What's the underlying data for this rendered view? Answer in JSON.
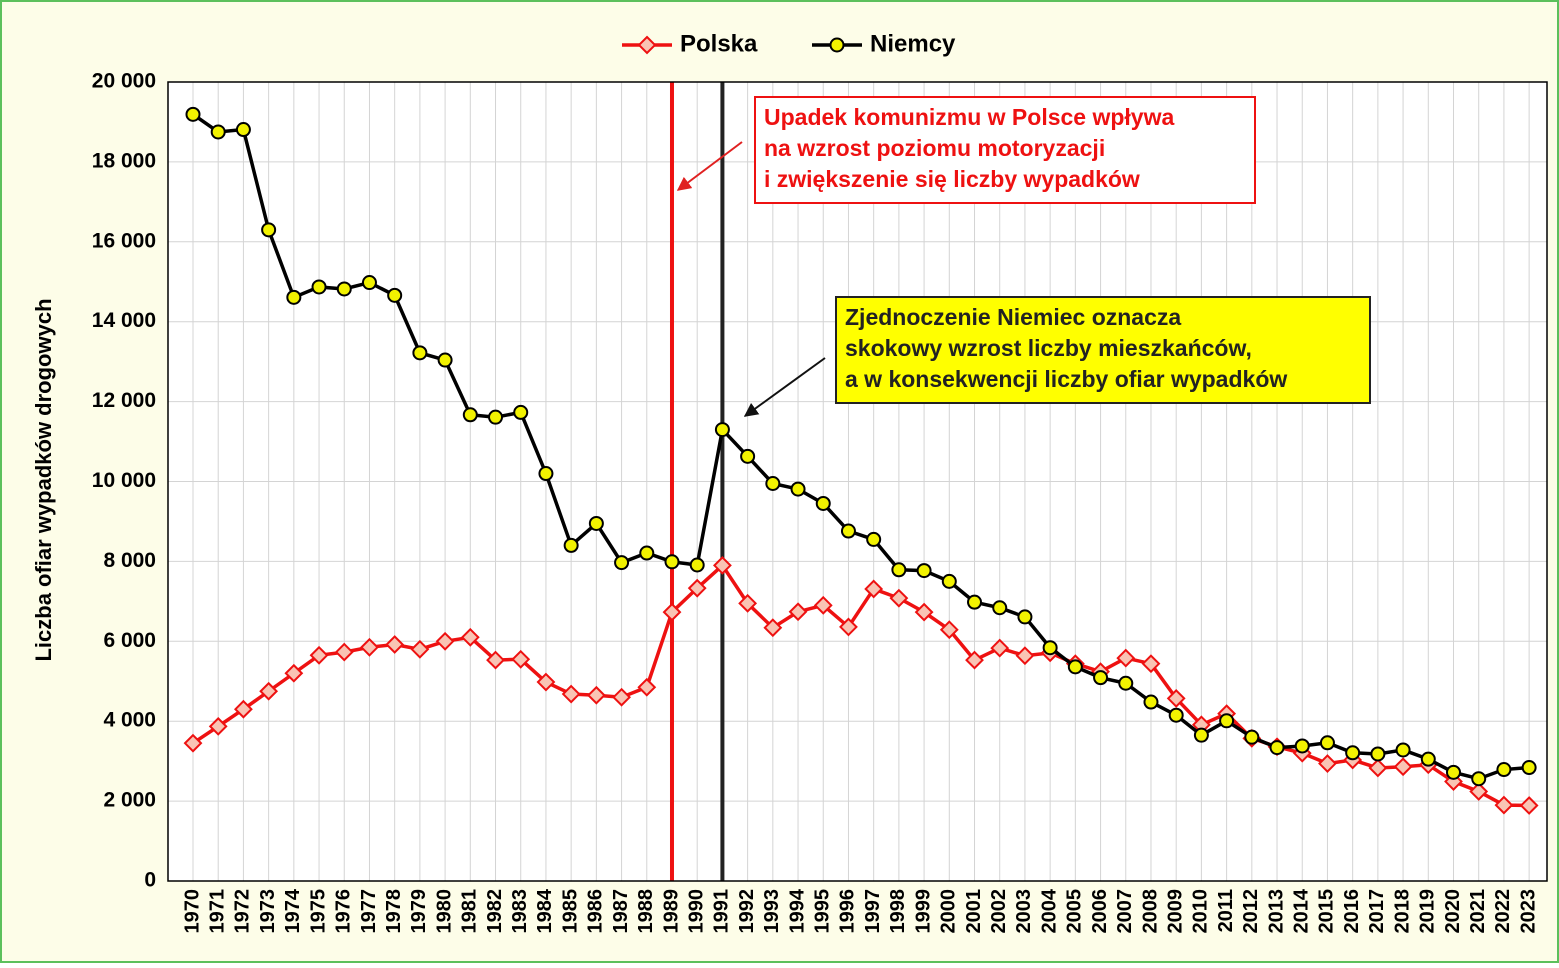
{
  "chart_data": {
    "type": "line",
    "y_label": "Liczba ofiar wypadków drogowych",
    "categories": [
      "1970",
      "1971",
      "1972",
      "1973",
      "1974",
      "1975",
      "1976",
      "1977",
      "1978",
      "1979",
      "1980",
      "1981",
      "1982",
      "1983",
      "1984",
      "1985",
      "1986",
      "1987",
      "1988",
      "1989",
      "1990",
      "1991",
      "1992",
      "1993",
      "1994",
      "1995",
      "1996",
      "1997",
      "1998",
      "1999",
      "2000",
      "2001",
      "2002",
      "2003",
      "2004",
      "2005",
      "2006",
      "2007",
      "2008",
      "2009",
      "2010",
      "2011",
      "2012",
      "2013",
      "2014",
      "2015",
      "2016",
      "2017",
      "2018",
      "2019",
      "2020",
      "2021",
      "2022",
      "2023"
    ],
    "series": [
      {
        "name": "Polska",
        "color": "#ee1111",
        "marker": "diamond",
        "marker_fill": "#f9c4b4",
        "values": [
          3450,
          3870,
          4300,
          4750,
          5200,
          5650,
          5730,
          5850,
          5920,
          5800,
          6000,
          6100,
          5530,
          5550,
          4980,
          4680,
          4650,
          4600,
          4850,
          6730,
          7330,
          7900,
          6950,
          6340,
          6740,
          6900,
          6360,
          7310,
          7080,
          6730,
          6290,
          5530,
          5830,
          5640,
          5710,
          5440,
          5240,
          5580,
          5440,
          4570,
          3910,
          4190,
          3570,
          3360,
          3200,
          2940,
          3030,
          2830,
          2860,
          2910,
          2490,
          2240,
          1900,
          1890
        ]
      },
      {
        "name": "Niemcy",
        "color": "#000000",
        "marker": "circle",
        "marker_fill": "#f2f200",
        "values": [
          19190,
          18750,
          18810,
          16300,
          14610,
          14870,
          14820,
          14980,
          14660,
          13220,
          13040,
          11670,
          11610,
          11730,
          10200,
          8400,
          8950,
          7970,
          8210,
          7990,
          7910,
          11300,
          10630,
          9950,
          9810,
          9450,
          8760,
          8550,
          7790,
          7770,
          7500,
          6980,
          6840,
          6610,
          5840,
          5360,
          5090,
          4950,
          4480,
          4150,
          3650,
          4010,
          3600,
          3340,
          3380,
          3460,
          3210,
          3180,
          3280,
          3050,
          2720,
          2560,
          2790,
          2840
        ]
      }
    ],
    "ylim": [
      0,
      20000
    ],
    "yticks": [
      0,
      {
        "value": 2000,
        "label": "2 000"
      },
      {
        "value": 4000,
        "label": "4 000"
      },
      {
        "value": 6000,
        "label": "6 000"
      },
      {
        "value": 8000,
        "label": "8 000"
      },
      {
        "value": 10000,
        "label": "10 000"
      },
      {
        "value": 12000,
        "label": "12 000"
      },
      {
        "value": 14000,
        "label": "14 000"
      },
      {
        "value": 16000,
        "label": "16 000"
      },
      {
        "value": 18000,
        "label": "18 000"
      },
      {
        "value": 20000,
        "label": "20 000"
      }
    ],
    "grid": true,
    "legend": "top",
    "annotations": [
      {
        "x": "1989",
        "color": "#ee1111",
        "box_fill": "#ffffff",
        "lines": [
          "Upadek komunizmu w Polsce wpływa",
          "na wzrost poziomu motoryzacji",
          "i zwiększenie się liczby wypadków"
        ]
      },
      {
        "x": "1991",
        "color": "#222222",
        "box_fill": "#ffff00",
        "lines": [
          "Zjednoczenie Niemiec oznacza",
          "skokowy wzrost liczby mieszkańców,",
          "a w konsekwencji liczby ofiar wypadków"
        ]
      }
    ]
  }
}
